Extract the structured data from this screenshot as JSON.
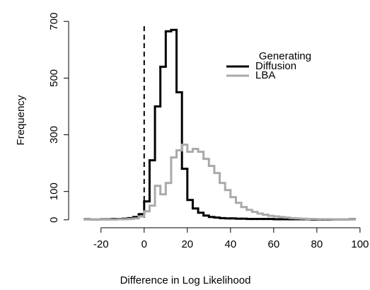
{
  "chart_data": {
    "type": "step-histogram",
    "xlabel": "Difference in Log Likelihood",
    "ylabel": "Frequency",
    "bins": [
      -27.5,
      -25,
      -22.5,
      -20,
      -17.5,
      -15,
      -12.5,
      -10,
      -7.5,
      -5,
      -2.5,
      0,
      2.5,
      5,
      7.5,
      10,
      12.5,
      15,
      17.5,
      20,
      22.5,
      25,
      27.5,
      30,
      32.5,
      35,
      37.5,
      40,
      42.5,
      45,
      47.5,
      50,
      52.5,
      55,
      57.5,
      60,
      62.5,
      65,
      67.5,
      70,
      72.5,
      75,
      77.5,
      80,
      82.5,
      85,
      87.5,
      90,
      92.5,
      95,
      97.5
    ],
    "series": [
      {
        "name": "Diffusion",
        "color": "#000000",
        "values": [
          2,
          1,
          1,
          2,
          2,
          3,
          3,
          4,
          6,
          10,
          20,
          65,
          210,
          400,
          540,
          665,
          670,
          450,
          180,
          70,
          40,
          25,
          15,
          10,
          8,
          6,
          5,
          5,
          4,
          4,
          3,
          3,
          3,
          3,
          3,
          2,
          2,
          2,
          2,
          2,
          2,
          2,
          1,
          1,
          1,
          1,
          1,
          1,
          1,
          2
        ]
      },
      {
        "name": "LBA",
        "color": "#aaaaaa",
        "values": [
          1,
          1,
          1,
          1,
          1,
          1,
          2,
          2,
          3,
          5,
          12,
          30,
          50,
          120,
          90,
          130,
          220,
          245,
          265,
          240,
          250,
          240,
          215,
          190,
          165,
          130,
          105,
          80,
          60,
          45,
          35,
          28,
          22,
          18,
          14,
          12,
          10,
          8,
          6,
          5,
          4,
          3,
          3,
          2,
          2,
          2,
          1,
          1,
          1,
          1
        ]
      }
    ],
    "legend_title": "Generating",
    "legend": "topright",
    "vline": 0,
    "xlim": [
      -35,
      102
    ],
    "ylim": [
      -28,
      728
    ],
    "xticks": [
      -20,
      0,
      20,
      40,
      60,
      80,
      100
    ],
    "yticks": [
      0,
      100,
      300,
      500,
      700
    ]
  }
}
